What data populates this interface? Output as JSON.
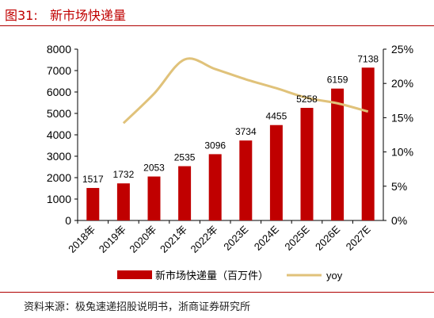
{
  "title": "图31:   新市场快递量",
  "source": "资料来源：极兔速递招股说明书，浙商证券研究所",
  "colors": {
    "bar": "#c00000",
    "line": "#e0c27a",
    "title": "#c00000"
  },
  "chart_data": {
    "type": "bar",
    "categories": [
      "2018年",
      "2019年",
      "2020年",
      "2021年",
      "2022年",
      "2023E",
      "2024E",
      "2025E",
      "2026E",
      "2027E"
    ],
    "series": [
      {
        "name": "新市场快递量（百万件）",
        "type": "bar",
        "axis": "left",
        "values": [
          1517,
          1732,
          2053,
          2535,
          3096,
          3734,
          4455,
          5258,
          6159,
          7138
        ]
      },
      {
        "name": "yoy",
        "type": "line",
        "axis": "right",
        "values": [
          null,
          14.2,
          18.5,
          23.5,
          22.1,
          20.6,
          19.3,
          17.9,
          17.1,
          15.9
        ]
      }
    ],
    "data_labels": [
      "1517",
      "1732",
      "2053",
      "2535",
      "3096",
      "3734",
      "4455",
      "5258",
      "6159",
      "7138"
    ],
    "left_axis": {
      "min": 0,
      "max": 8000,
      "ticks": [
        "0",
        "1000",
        "2000",
        "3000",
        "4000",
        "5000",
        "6000",
        "7000",
        "8000"
      ]
    },
    "right_axis": {
      "min": 0,
      "max": 25,
      "ticks": [
        "0%",
        "5%",
        "10%",
        "15%",
        "20%",
        "25%"
      ]
    },
    "legend": {
      "position": "bottom",
      "items": [
        "新市场快递量（百万件）",
        "yoy"
      ]
    },
    "grid": false
  }
}
